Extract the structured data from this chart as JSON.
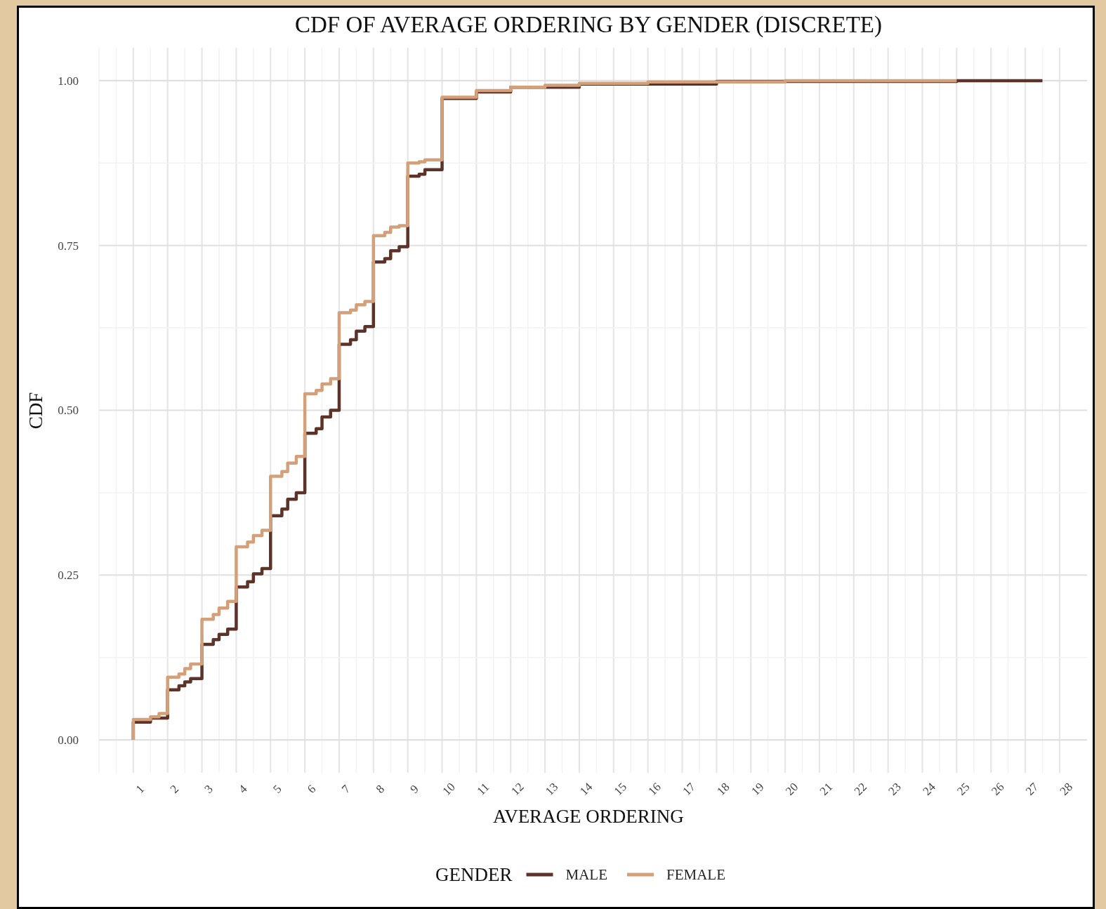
{
  "chart_data": {
    "type": "step",
    "title": "CDF OF AVERAGE ORDERING BY GENDER (DISCRETE)",
    "xlabel": "AVERAGE ORDERING",
    "ylabel": "CDF",
    "legend_title": "GENDER",
    "legend": "bottom",
    "grid": true,
    "xlim": [
      0,
      28.8
    ],
    "ylim": [
      -0.05,
      1.05
    ],
    "xticks": [
      {
        "value": 0,
        "label": null
      },
      {
        "value": 0.5,
        "label": null
      },
      1,
      {
        "value": 1.5,
        "label": null
      },
      2,
      {
        "value": 2.5,
        "label": null
      },
      3,
      {
        "value": 3.5,
        "label": null
      },
      4,
      {
        "value": 4.5,
        "label": null
      },
      5,
      {
        "value": 5.5,
        "label": null
      },
      6,
      {
        "value": 6.5,
        "label": null
      },
      7,
      {
        "value": 7.5,
        "label": null
      },
      8,
      {
        "value": 8.5,
        "label": null
      },
      9,
      {
        "value": 9.5,
        "label": null
      },
      10,
      {
        "value": 10.5,
        "label": null
      },
      11,
      {
        "value": 11.5,
        "label": null
      },
      12,
      {
        "value": 12.5,
        "label": null
      },
      13,
      {
        "value": 13.5,
        "label": null
      },
      14,
      {
        "value": 14.5,
        "label": null
      },
      15,
      {
        "value": 15.5,
        "label": null
      },
      16,
      {
        "value": 16.5,
        "label": null
      },
      17,
      {
        "value": 17.5,
        "label": null
      },
      18,
      {
        "value": 18.5,
        "label": null
      },
      19,
      {
        "value": 19.5,
        "label": null
      },
      20,
      {
        "value": 20.5,
        "label": null
      },
      21,
      {
        "value": 21.5,
        "label": null
      },
      22,
      {
        "value": 22.5,
        "label": null
      },
      23,
      {
        "value": 23.5,
        "label": null
      },
      24,
      {
        "value": 24.5,
        "label": null
      },
      25,
      {
        "value": 25.5,
        "label": null
      },
      26,
      {
        "value": 26.5,
        "label": null
      },
      27,
      {
        "value": 27.5,
        "label": null
      },
      28
    ],
    "yticks": [
      {
        "value": 0,
        "label": "0.00"
      },
      {
        "value": 0.125,
        "label": null
      },
      {
        "value": 0.25,
        "label": "0.25"
      },
      {
        "value": 0.375,
        "label": null
      },
      {
        "value": 0.5,
        "label": "0.50"
      },
      {
        "value": 0.625,
        "label": null
      },
      {
        "value": 0.75,
        "label": "0.75"
      },
      {
        "value": 0.875,
        "label": null
      },
      {
        "value": 1,
        "label": "1.00"
      }
    ],
    "series": [
      {
        "name": "MALE",
        "color": "#5c3229",
        "x": [
          1,
          1,
          1.5,
          2,
          2.33,
          2.5,
          2.67,
          3,
          3.33,
          3.5,
          3.75,
          4,
          4.33,
          4.5,
          4.75,
          5,
          5.33,
          5.5,
          5.75,
          6,
          6.33,
          6.5,
          6.75,
          7,
          7.33,
          7.5,
          7.75,
          8,
          8.33,
          8.5,
          8.75,
          9,
          9.33,
          9.5,
          10,
          11,
          12,
          14,
          18,
          25,
          27.5
        ],
        "values": [
          0,
          0.027,
          0.033,
          0.076,
          0.082,
          0.088,
          0.093,
          0.145,
          0.152,
          0.16,
          0.168,
          0.232,
          0.24,
          0.252,
          0.26,
          0.34,
          0.35,
          0.365,
          0.375,
          0.465,
          0.472,
          0.49,
          0.5,
          0.6,
          0.607,
          0.62,
          0.627,
          0.725,
          0.73,
          0.742,
          0.748,
          0.855,
          0.858,
          0.865,
          0.973,
          0.983,
          0.99,
          0.995,
          0.999,
          1.0,
          1.0
        ]
      },
      {
        "name": "FEMALE",
        "color": "#d4a07a",
        "x": [
          1,
          1,
          1.5,
          1.75,
          2,
          2.33,
          2.5,
          2.67,
          3,
          3.33,
          3.5,
          3.75,
          4,
          4.33,
          4.5,
          4.75,
          5,
          5.33,
          5.5,
          5.75,
          6,
          6.33,
          6.5,
          6.75,
          7,
          7.33,
          7.5,
          7.75,
          8,
          8.33,
          8.5,
          8.75,
          9,
          9.33,
          9.5,
          10,
          11,
          12,
          13,
          14,
          16,
          20,
          25
        ],
        "values": [
          0,
          0.031,
          0.035,
          0.04,
          0.095,
          0.1,
          0.108,
          0.115,
          0.183,
          0.19,
          0.2,
          0.21,
          0.293,
          0.3,
          0.31,
          0.318,
          0.4,
          0.407,
          0.42,
          0.43,
          0.525,
          0.53,
          0.54,
          0.548,
          0.648,
          0.652,
          0.66,
          0.665,
          0.765,
          0.77,
          0.778,
          0.78,
          0.875,
          0.877,
          0.88,
          0.975,
          0.985,
          0.99,
          0.993,
          0.996,
          0.998,
          1.0,
          1.0
        ]
      }
    ]
  }
}
